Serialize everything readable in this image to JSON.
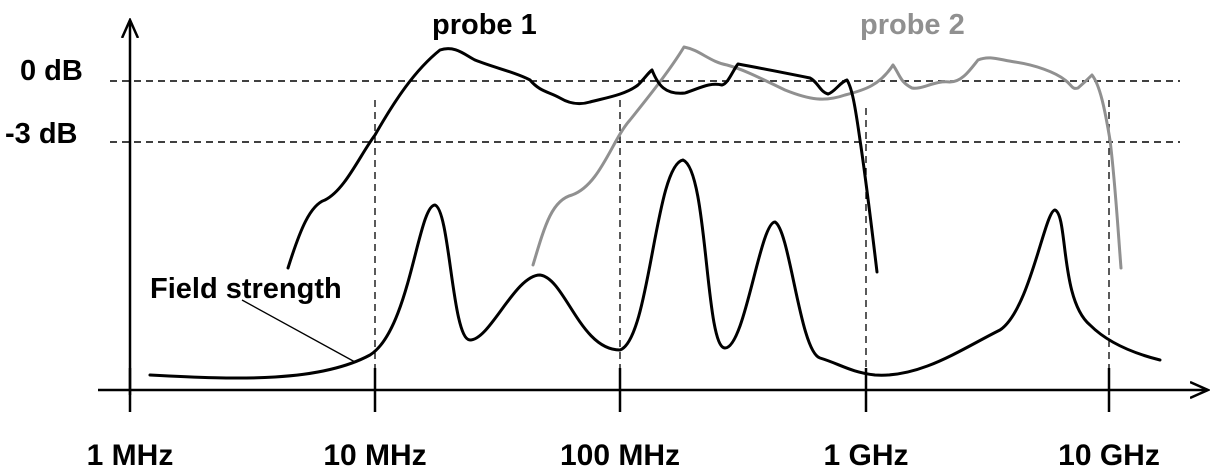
{
  "y_axis_labels": {
    "zero_db": "0 dB",
    "minus_3db": "-3 dB"
  },
  "x_axis_labels": [
    "1 MHz",
    "10 MHz",
    "100 MHz",
    "1 GHz",
    "10 GHz"
  ],
  "curves": {
    "probe1": {
      "label": "probe 1",
      "color": "#000000"
    },
    "probe2": {
      "label": "probe 2",
      "color": "#909090"
    },
    "field_strength": {
      "label": "Field strength",
      "color": "#000000"
    }
  }
}
